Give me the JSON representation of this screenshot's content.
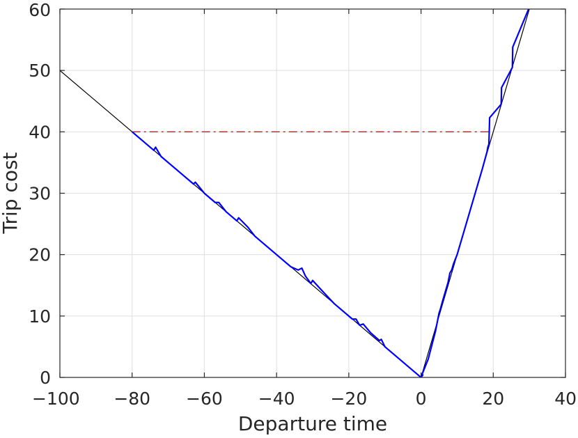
{
  "chart_data": {
    "type": "line",
    "title": "",
    "xlabel": "Departure time",
    "ylabel": "Trip cost",
    "xlim": [
      -100,
      40
    ],
    "ylim": [
      0,
      60
    ],
    "xticks": [
      -100,
      -80,
      -60,
      -40,
      -20,
      0,
      20,
      40
    ],
    "yticks": [
      0,
      10,
      20,
      30,
      40,
      50,
      60
    ],
    "xtick_labels": [
      "−100",
      "−80",
      "−60",
      "−40",
      "−20",
      "0",
      "20",
      "40"
    ],
    "ytick_labels": [
      "0",
      "10",
      "20",
      "30",
      "40",
      "50",
      "60"
    ],
    "grid": true,
    "legend": "none",
    "series": [
      {
        "color": "#000000",
        "style": "solid",
        "points": [
          [
            -100,
            50
          ],
          [
            0,
            0
          ],
          [
            30.5,
            61
          ]
        ]
      },
      {
        "color": "#ff0000",
        "style": "dashdot",
        "points": [
          [
            -80,
            40
          ],
          [
            19,
            40
          ]
        ]
      },
      {
        "color": "#0000ff",
        "style": "solid",
        "points": [
          [
            -80,
            40
          ],
          [
            -74,
            37
          ],
          [
            -73.5,
            37.5
          ],
          [
            -72,
            36
          ],
          [
            -70,
            35
          ],
          [
            -66,
            33
          ],
          [
            -63,
            31.5
          ],
          [
            -62.5,
            31.8
          ],
          [
            -60,
            30
          ],
          [
            -57,
            28.5
          ],
          [
            -56,
            28.5
          ],
          [
            -54,
            27
          ],
          [
            -51,
            25.5
          ],
          [
            -50.5,
            26
          ],
          [
            -48,
            24.5
          ],
          [
            -46,
            23
          ],
          [
            -40,
            20
          ],
          [
            -36,
            18
          ],
          [
            -34,
            17.5
          ],
          [
            -33,
            17.8
          ],
          [
            -32,
            16.5
          ],
          [
            -30.5,
            15.3
          ],
          [
            -30,
            15.8
          ],
          [
            -28,
            14.5
          ],
          [
            -24,
            12
          ],
          [
            -19,
            9.5
          ],
          [
            -18,
            9.5
          ],
          [
            -17,
            8.5
          ],
          [
            -16,
            8.7
          ],
          [
            -14,
            7.3
          ],
          [
            -11.5,
            6
          ],
          [
            -11,
            6.2
          ],
          [
            -10,
            5
          ],
          [
            -6,
            3
          ],
          [
            -2,
            1
          ],
          [
            0,
            0
          ],
          [
            0.5,
            0.4
          ],
          [
            0.3,
            0.5
          ],
          [
            2,
            3
          ],
          [
            4,
            7.5
          ],
          [
            5,
            10.5
          ],
          [
            5.3,
            11
          ],
          [
            6,
            12.5
          ],
          [
            7,
            14.5
          ],
          [
            7.5,
            15.5
          ],
          [
            8,
            17
          ],
          [
            8.5,
            17.5
          ],
          [
            9,
            18.5
          ],
          [
            10,
            20
          ],
          [
            12,
            24
          ],
          [
            14,
            28
          ],
          [
            16,
            32
          ],
          [
            17,
            34
          ],
          [
            18.3,
            36.8
          ],
          [
            18.5,
            37.5
          ],
          [
            18.8,
            38
          ],
          [
            19,
            42.3
          ],
          [
            22.2,
            44.5
          ],
          [
            22.3,
            47.2
          ],
          [
            25.3,
            50.5
          ],
          [
            25.4,
            53.8
          ],
          [
            30.5,
            61
          ]
        ]
      }
    ]
  }
}
